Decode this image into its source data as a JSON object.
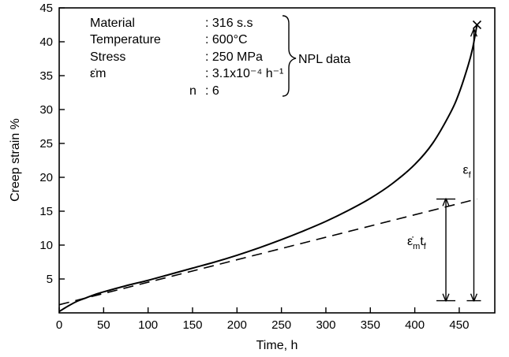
{
  "chart_data": {
    "type": "line",
    "xlabel": "Time, h",
    "ylabel": "Creep strain %",
    "xlim": [
      0,
      490
    ],
    "ylim": [
      0,
      45
    ],
    "x_ticks": [
      0,
      50,
      100,
      150,
      200,
      250,
      300,
      350,
      400,
      450
    ],
    "y_ticks": [
      5,
      10,
      15,
      20,
      25,
      30,
      35,
      40,
      45
    ],
    "grid": false,
    "series": [
      {
        "style": "solid",
        "x": [
          0,
          10,
          20,
          30,
          40,
          50,
          75,
          100,
          125,
          150,
          175,
          200,
          225,
          250,
          275,
          300,
          325,
          350,
          375,
          400,
          420,
          440,
          450,
          460,
          465,
          470
        ],
        "y": [
          0.2,
          1.0,
          1.7,
          2.2,
          2.7,
          3.1,
          4.0,
          4.8,
          5.7,
          6.6,
          7.5,
          8.5,
          9.6,
          10.8,
          12.1,
          13.5,
          15.1,
          16.9,
          19.1,
          21.9,
          25.0,
          29.5,
          32.5,
          36.5,
          39.0,
          42.5
        ]
      },
      {
        "style": "dashed",
        "x": [
          0,
          470
        ],
        "y": [
          1.2,
          16.8
        ]
      }
    ],
    "rupture_marker": {
      "symbol": "x",
      "x": 470,
      "y": 42.5
    },
    "legend": {
      "rows": [
        {
          "label": "Material",
          "value": ": 316 s.s"
        },
        {
          "label": "Temperature",
          "value": ": 600°C"
        },
        {
          "label": "Stress",
          "value": ": 250 MPa"
        },
        {
          "label": "ε̇m",
          "value": ": 3.1x10⁻⁴ h⁻¹"
        },
        {
          "label": "n",
          "value": ": 6"
        }
      ],
      "brace_label": "NPL data"
    },
    "annotations": {
      "ef": {
        "main": "ε",
        "sub": "f",
        "x": 470,
        "y_from": 1.8,
        "y_to": 42.5
      },
      "emtf": {
        "main": "ε̇",
        "sub1": "m",
        "mid": "t",
        "sub2": "f",
        "x": 435,
        "y_from": 1.8,
        "y_to": 16.8
      }
    }
  }
}
